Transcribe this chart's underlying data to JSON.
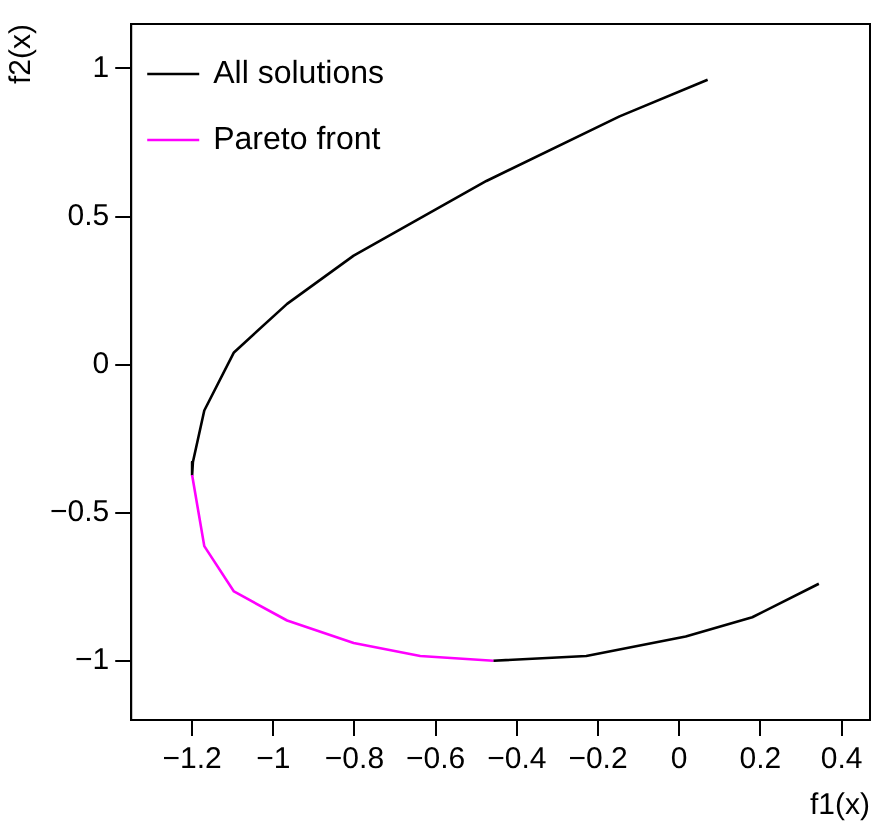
{
  "chart_data": {
    "type": "line",
    "xlabel": "f1(x)",
    "ylabel": "f2(x)",
    "xlim": [
      -1.35,
      0.47
    ],
    "ylim": [
      -1.2,
      1.15
    ],
    "xticks": [
      {
        "value": -1.2,
        "label": "−1.2"
      },
      {
        "value": -1,
        "label": "−1"
      },
      {
        "value": -0.8,
        "label": "−0.8"
      },
      {
        "value": -0.6,
        "label": "−0.6"
      },
      {
        "value": -0.4,
        "label": "−0.4"
      },
      {
        "value": -0.2,
        "label": "−0.2"
      },
      0,
      0.2,
      0.4
    ],
    "yticks": [
      {
        "value": -1,
        "label": "−1"
      },
      {
        "value": -0.5,
        "label": "−0.5"
      },
      0,
      0.5,
      1
    ],
    "grid": false,
    "legend": "top left",
    "marker": "none",
    "line_style": "solid",
    "series": [
      {
        "name": "All solutions",
        "color": "#000000",
        "x": [
          0.07,
          -0.147,
          -0.475,
          -0.802,
          -0.966,
          -1.097,
          -1.17,
          -1.198,
          -1.2,
          -1.17,
          -1.097,
          -0.966,
          -0.802,
          -0.638,
          -0.458,
          -0.229,
          0.016,
          0.18,
          0.344
        ],
        "values": [
          0.962,
          0.838,
          0.62,
          0.368,
          0.205,
          0.041,
          -0.155,
          -0.329,
          -0.373,
          null,
          null,
          null,
          null,
          null,
          -1.0,
          -0.984,
          -0.918,
          -0.853,
          -0.74
        ]
      },
      {
        "name": "Pareto front",
        "color": "#ff00ff",
        "x": [
          -1.2,
          -1.17,
          -1.097,
          -0.966,
          -0.802,
          -0.638,
          -0.458
        ],
        "values": [
          -0.373,
          -0.613,
          -0.766,
          -0.864,
          -0.94,
          -0.984,
          -1.0
        ]
      }
    ]
  }
}
